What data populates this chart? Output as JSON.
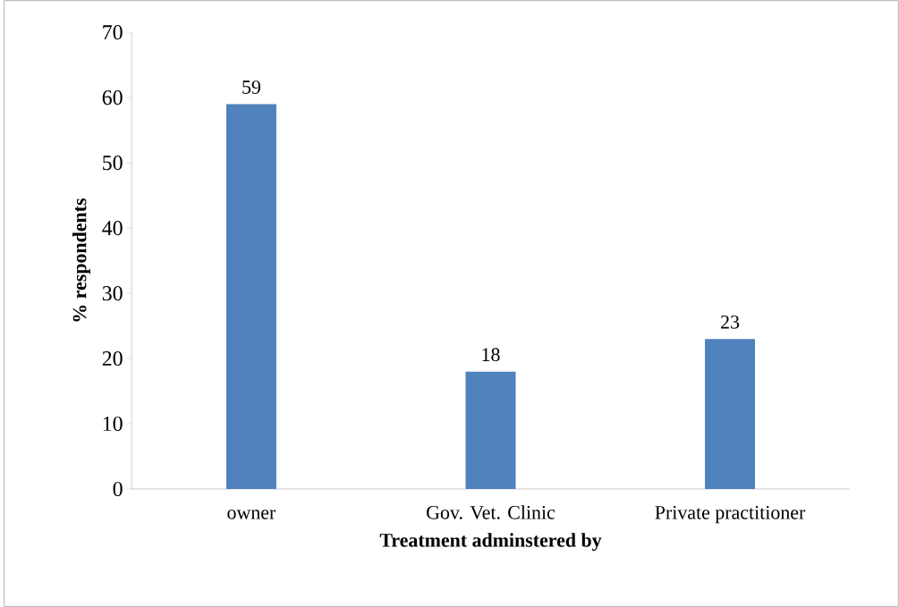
{
  "chart_data": {
    "type": "bar",
    "xlabel": "Treatment adminstered by",
    "ylabel": "% respondents",
    "categories": [
      "owner",
      "Gov. Vet. Clinic",
      "Private practitioner"
    ],
    "values": [
      59,
      18,
      23
    ],
    "color": "#4f81bd",
    "ylim": [
      0,
      70
    ],
    "yticks": [
      0,
      10,
      20,
      30,
      40,
      50,
      60,
      70
    ],
    "data_labels": true
  }
}
